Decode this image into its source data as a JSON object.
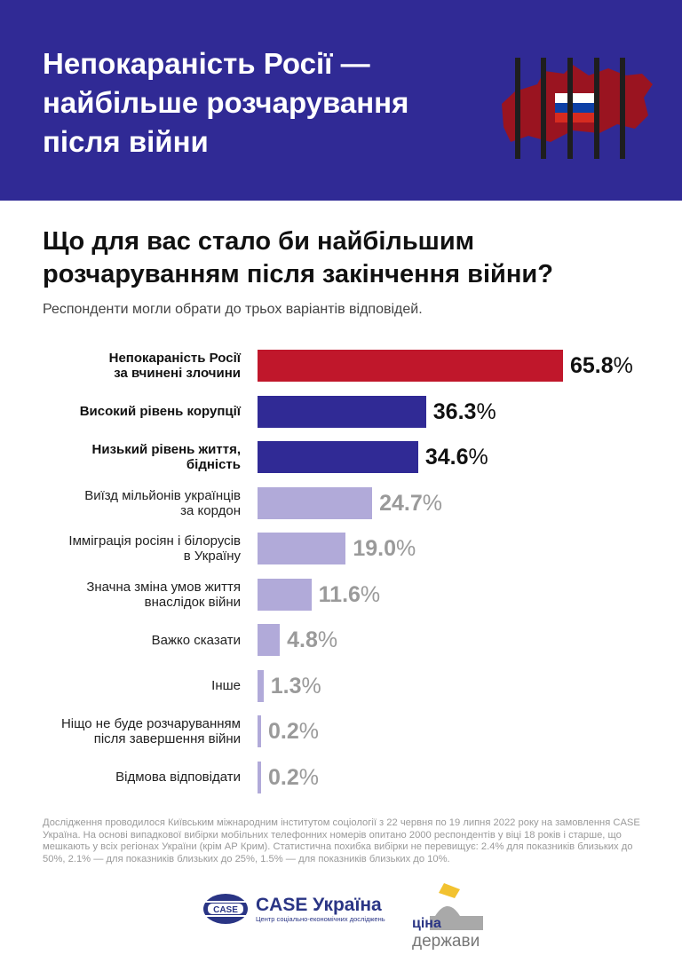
{
  "header": {
    "title": "Непокараність Росії — найбільше розчарування після війни"
  },
  "question": "Що для вас стало би найбільшим розчаруванням після закінчення війни?",
  "subtitle": "Респонденти могли обрати до трьох варіантів відповідей.",
  "colors": {
    "header_bg": "#302a95",
    "highlight": "#c0172b",
    "top": "#302a95",
    "other": "#b1aad9"
  },
  "chart_data": {
    "type": "bar",
    "orientation": "horizontal",
    "unit": "%",
    "categories": [
      "Непокараність Росії за вчинені злочини",
      "Високий рівень корупції",
      "Низький рівень життя, бідність",
      "Виїзд мільйонів українців за кордон",
      "Імміграція росіян і білорусів в Україну",
      "Значна зміна умов життя внаслідок війни",
      "Важко сказати",
      "Інше",
      "Ніщо не буде розчаруванням після завершення війни",
      "Відмова відповідати"
    ],
    "label_lines": [
      [
        "Непокараність Росії",
        "за вчинені злочини"
      ],
      [
        "Високий рівень корупції"
      ],
      [
        "Низький рівень життя,",
        "бідність"
      ],
      [
        "Виїзд мільйонів українців",
        "за кордон"
      ],
      [
        "Імміграція росіян і білорусів",
        "в Україну"
      ],
      [
        "Значна зміна умов життя",
        "внаслідок війни"
      ],
      [
        "Важко сказати"
      ],
      [
        "Інше"
      ],
      [
        "Ніщо не буде розчаруванням",
        "після завершення війни"
      ],
      [
        "Відмова відповідати"
      ]
    ],
    "values": [
      65.8,
      36.3,
      34.6,
      24.7,
      19.0,
      11.6,
      4.8,
      1.3,
      0.2,
      0.2
    ],
    "value_labels": [
      "65.8",
      "36.3",
      "34.6",
      "24.7",
      "19.0",
      "11.6",
      "4.8",
      "1.3",
      "0.2",
      "0.2"
    ],
    "xlim": [
      0,
      65.8
    ]
  },
  "footnote": "Дослідження проводилося Київським міжнародним інститутом соціології з 22 червня по 19 липня 2022 року на замовлення CASE Україна. На основі випадкової вибірки мобільних телефонних номерів опитано 2000 респондентів у віці 18 років і старше, що мешкають у всіх регіонах України (крім АР Крим). Статистична похибка вибірки не перевищує: 2.4% для показників близьких до 50%, 2.1% — для показників близьких до 25%, 1.5% — для показників близьких до 10%.",
  "logos": {
    "case_badge": "CASE",
    "case_name": "CASE Україна",
    "case_tagline": "Центр соціально-економічних досліджень",
    "cina_top": "ціна",
    "cina_bottom": "держави"
  }
}
